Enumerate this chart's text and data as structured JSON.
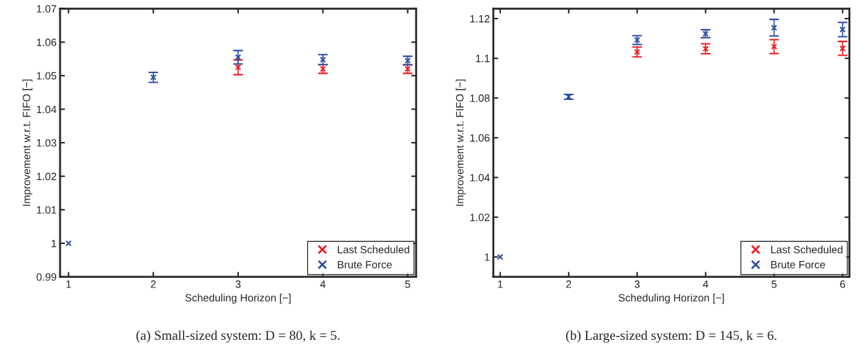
{
  "chart_data": [
    {
      "type": "scatter",
      "xlabel": "Scheduling Horizon [−]",
      "ylabel": "Improvement w.r.t. FIFO [−]",
      "x": [
        1,
        2,
        3,
        4,
        5
      ],
      "xlim": [
        0.9,
        5.1
      ],
      "xticks": [
        1,
        2,
        3,
        4,
        5
      ],
      "ylim": [
        0.99,
        1.07
      ],
      "yticks": [
        0.99,
        1,
        1.01,
        1.02,
        1.03,
        1.04,
        1.05,
        1.06,
        1.07
      ],
      "marker": "cross",
      "grid": false,
      "legend": "bottom right",
      "annotations": [
        "(a) Small-sized system: D = 80, k = 5."
      ],
      "series": [
        {
          "name": "Last Scheduled",
          "color": "#ee1c25",
          "values": [
            null,
            null,
            1.0525,
            1.052,
            1.052
          ],
          "errors": [
            null,
            null,
            0.0022,
            0.0013,
            0.0013
          ]
        },
        {
          "name": "Brute Force",
          "color": "#2e4fa3",
          "values": [
            1.0,
            1.0495,
            1.0555,
            1.0548,
            1.0545
          ],
          "errors": [
            null,
            0.0015,
            0.002,
            0.0015,
            0.0013
          ]
        }
      ]
    },
    {
      "type": "scatter",
      "xlabel": "Scheduling Horizon [−]",
      "ylabel": "Improvement w.r.t. FIFO [−]",
      "x": [
        1,
        2,
        3,
        4,
        5,
        6
      ],
      "xlim": [
        0.9,
        6.1
      ],
      "xticks": [
        1,
        2,
        3,
        4,
        5,
        6
      ],
      "ylim": [
        0.99,
        1.125
      ],
      "yticks": [
        1,
        1.02,
        1.04,
        1.06,
        1.08,
        1.1,
        1.12
      ],
      "marker": "cross",
      "grid": false,
      "legend": "bottom right",
      "annotations": [
        "(b) Large-sized system: D = 145, k = 6."
      ],
      "series": [
        {
          "name": "Last Scheduled",
          "color": "#ee1c25",
          "values": [
            null,
            null,
            1.1032,
            1.1048,
            1.1059,
            1.105
          ],
          "errors": [
            null,
            null,
            0.0025,
            0.0025,
            0.0035,
            0.0035
          ]
        },
        {
          "name": "Brute Force",
          "color": "#2e4fa3",
          "values": [
            1.0,
            1.0806,
            1.1092,
            1.1124,
            1.1154,
            1.1145
          ],
          "errors": [
            null,
            0.0012,
            0.0022,
            0.002,
            0.0042,
            0.0036
          ]
        }
      ]
    }
  ]
}
